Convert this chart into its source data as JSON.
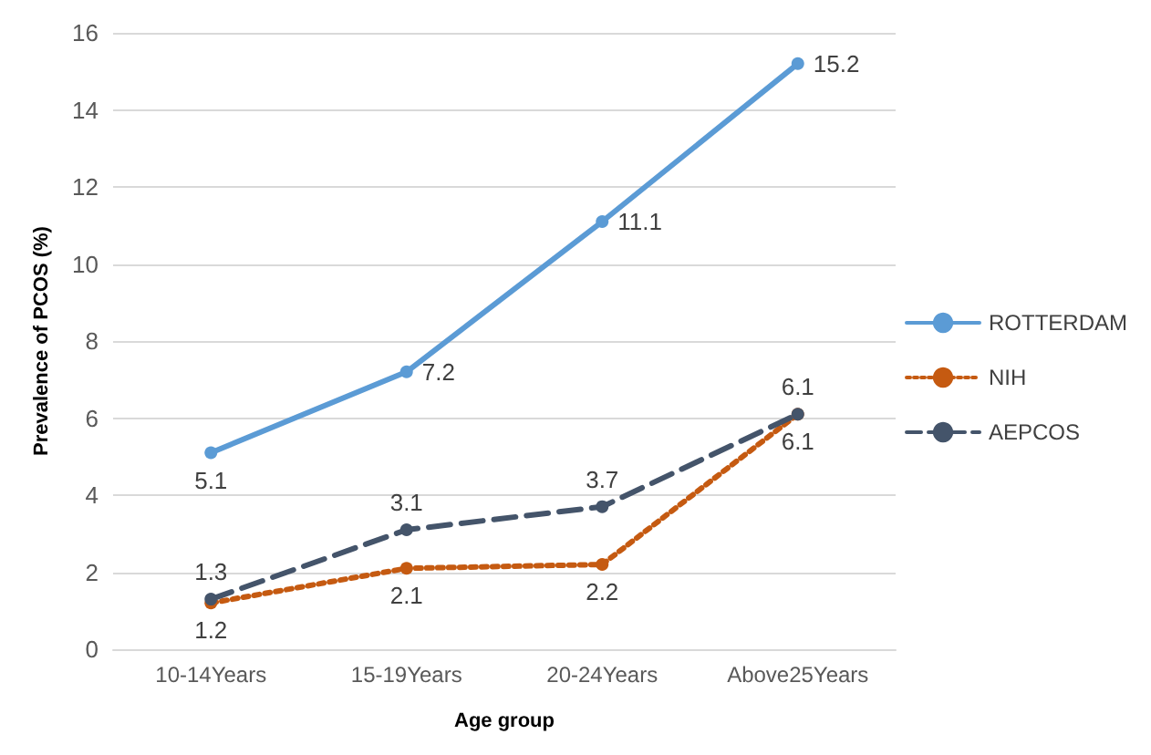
{
  "chart_data": {
    "type": "line",
    "xlabel": "Age group",
    "ylabel": "Prevalence of PCOS (%)",
    "categories": [
      "10-14Years",
      "15-19Years",
      "20-24Years",
      "Above25Years"
    ],
    "series": [
      {
        "name": "ROTTERDAM",
        "color": "#5b9bd5",
        "values": [
          5.1,
          7.2,
          11.1,
          15.2
        ],
        "line_style": "solid"
      },
      {
        "name": "NIH",
        "color": "#c55a11",
        "values": [
          1.2,
          2.1,
          2.2,
          6.1
        ],
        "line_style": "dotted"
      },
      {
        "name": "AEPCOS",
        "color": "#44546a",
        "values": [
          1.3,
          3.1,
          3.7,
          6.1
        ],
        "line_style": "dashed"
      }
    ],
    "ylim": [
      0,
      16
    ],
    "yticks": [
      0,
      2,
      4,
      6,
      8,
      10,
      12,
      14,
      16
    ],
    "grid": "y",
    "legend": "right",
    "marker": "circle",
    "data_labels": true
  }
}
